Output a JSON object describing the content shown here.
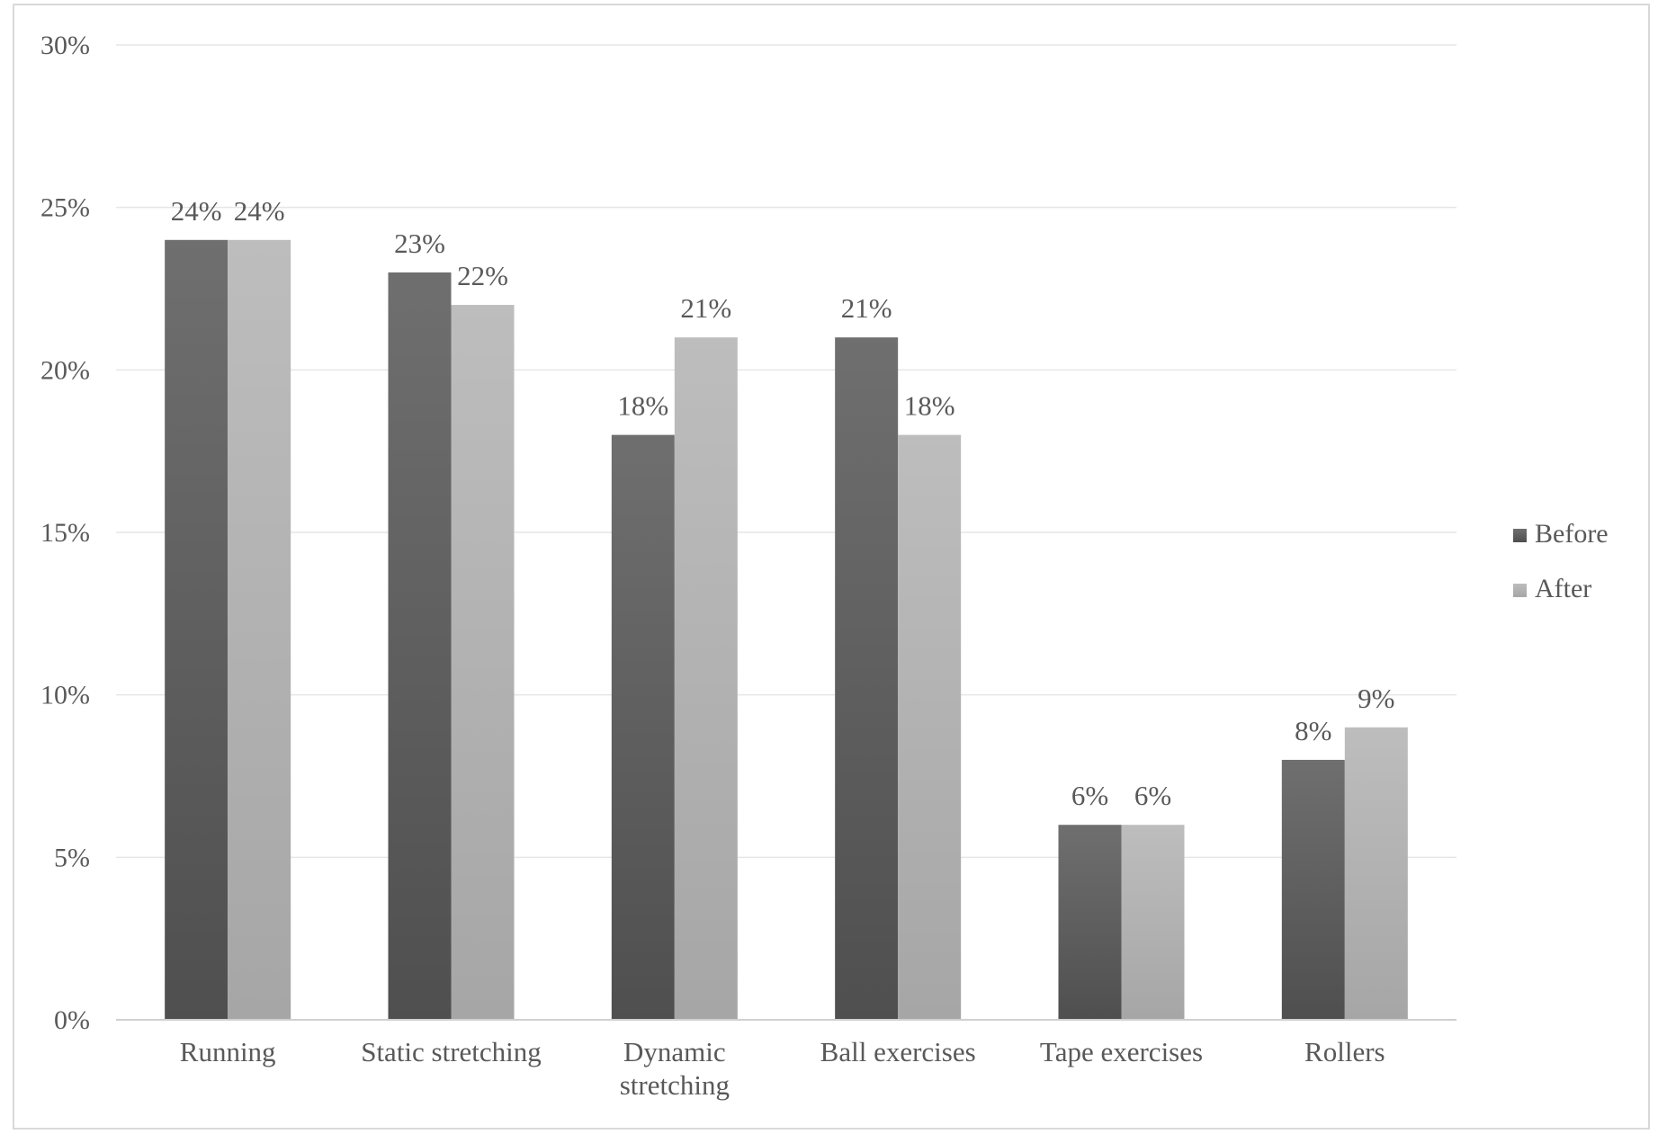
{
  "chart_data": {
    "type": "bar",
    "categories": [
      "Running",
      "Static stretching",
      "Dynamic stretching",
      "Ball exercises",
      "Tape exercises",
      "Rollers"
    ],
    "category_lines": [
      [
        "Running"
      ],
      [
        "Static stretching"
      ],
      [
        "Dynamic",
        "stretching"
      ],
      [
        "Ball exercises"
      ],
      [
        "Tape exercises"
      ],
      [
        "Rollers"
      ]
    ],
    "series": [
      {
        "name": "Before",
        "values": [
          24,
          23,
          18,
          21,
          6,
          8
        ],
        "labels": [
          "24%",
          "23%",
          "18%",
          "21%",
          "6%",
          "8%"
        ],
        "color": "#5b5b5b"
      },
      {
        "name": "After",
        "values": [
          24,
          22,
          21,
          18,
          6,
          9
        ],
        "labels": [
          "24%",
          "22%",
          "21%",
          "18%",
          "6%",
          "9%"
        ],
        "color": "#b3b3b3"
      }
    ],
    "yticks": [
      0,
      5,
      10,
      15,
      20,
      25,
      30
    ],
    "ytick_labels": [
      "0%",
      "5%",
      "10%",
      "15%",
      "20%",
      "25%",
      "30%"
    ],
    "ylim": [
      0,
      30
    ],
    "grid": true,
    "legend_position": "right",
    "title": "",
    "xlabel": "",
    "ylabel": ""
  }
}
